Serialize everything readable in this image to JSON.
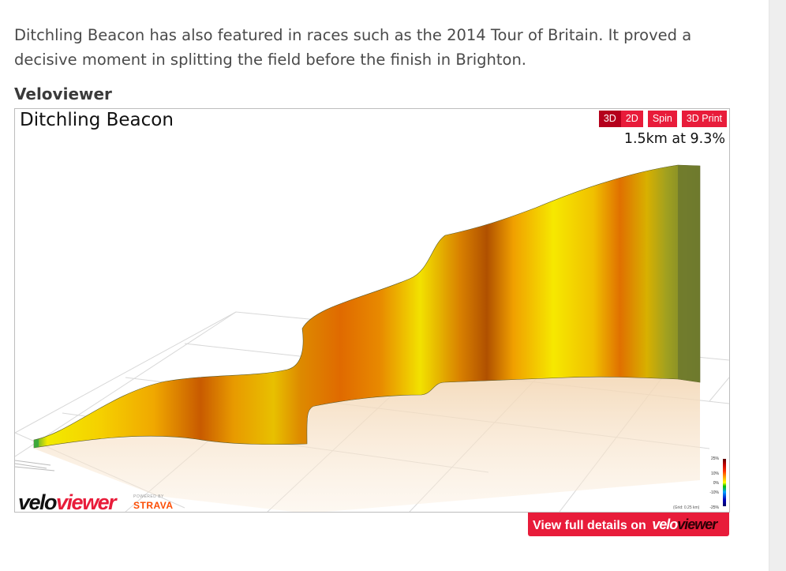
{
  "article": {
    "intro_paragraph": "Ditchling Beacon has also featured in races such as the 2014 Tour of Britain. It proved a decisive moment in splitting the field before the finish in Brighton.",
    "section_title": "Veloviewer"
  },
  "widget": {
    "segment_name": "Ditchling Beacon",
    "stat": "1.5km at 9.3%",
    "view_buttons": {
      "btn_3d": "3D",
      "btn_2d": "2D"
    },
    "spin_label": "Spin",
    "print_label": "3D Print",
    "logo": {
      "velo": "velo",
      "viewer": "viewer"
    },
    "powered_by": "POWERED BY",
    "strava": "STRAVA",
    "legend": {
      "labels": [
        "25%",
        "10%",
        "0%",
        "-10%",
        "-25%"
      ]
    },
    "grid_note": "(Grid: 0.25 km)",
    "full_details": {
      "text": "View full details on",
      "logo_velo": "velo",
      "logo_viewer": "viewer"
    }
  },
  "colors": {
    "accent": "#e81c3a",
    "accent_dark": "#b5001c",
    "strava": "#fc4c02"
  }
}
